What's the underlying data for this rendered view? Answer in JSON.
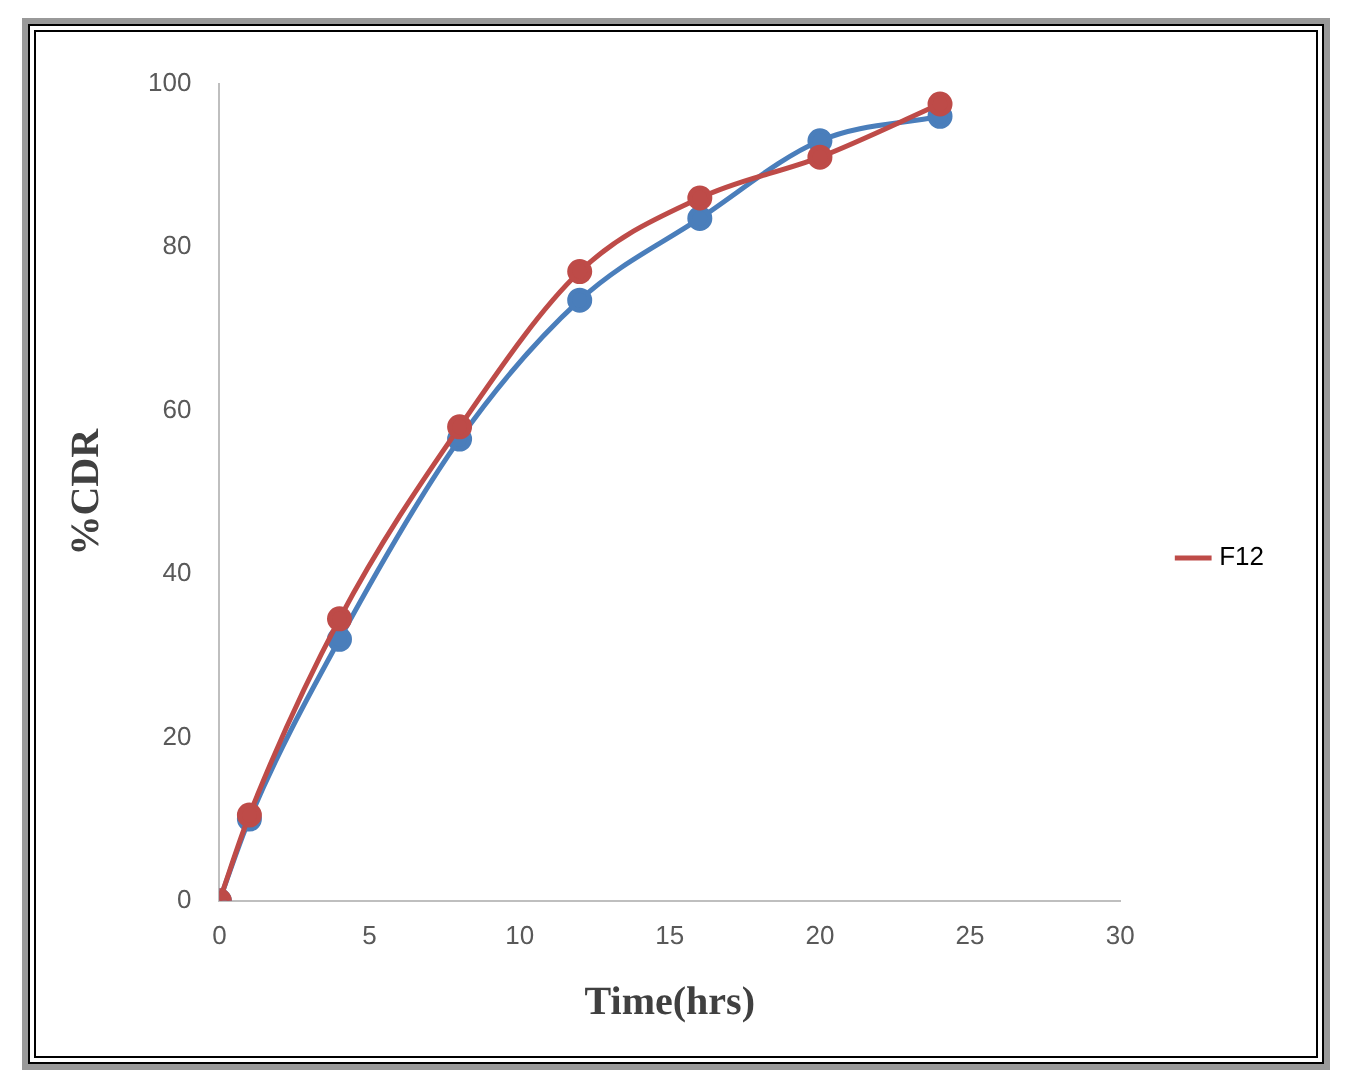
{
  "chart_data": {
    "type": "line",
    "xlabel": "Time(hrs)",
    "ylabel": "%CDR",
    "x": [
      0,
      1,
      4,
      8,
      12,
      16,
      20,
      24
    ],
    "series": [
      {
        "color": "#4a7ebb",
        "values": [
          0,
          10,
          32,
          56.5,
          73.5,
          83.5,
          93,
          96
        ]
      },
      {
        "name": "F12",
        "color": "#be4b48",
        "values": [
          0,
          10.5,
          34.5,
          58,
          77,
          86,
          91,
          97.5
        ]
      }
    ],
    "xlim": [
      0,
      30
    ],
    "xticks": [
      0,
      5,
      10,
      15,
      20,
      25,
      30
    ],
    "ylim": [
      0,
      100
    ],
    "yticks": [
      0,
      20,
      40,
      60,
      80,
      100
    ],
    "grid": false,
    "legend": "right",
    "marker": "circle",
    "line_style": "solid"
  }
}
